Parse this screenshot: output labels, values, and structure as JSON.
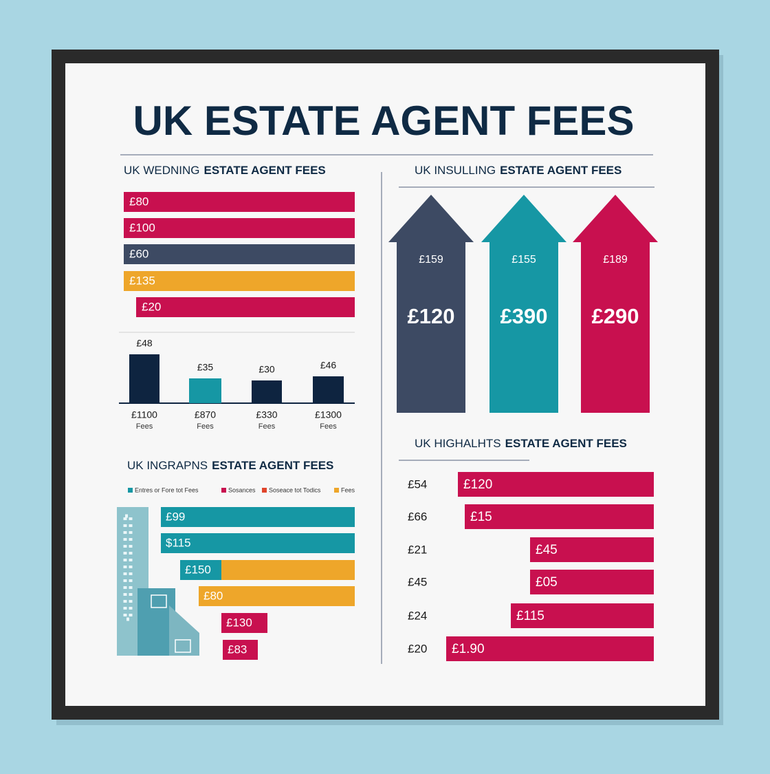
{
  "title": "UK ESTATE AGENT FEES",
  "panels": [
    {
      "subtitle": {
        "prefix": "UK WEDNING",
        "emphasis": "ESTATE AGENT FEES"
      },
      "bars": [
        "£80",
        "£100",
        "£60",
        "£135",
        "£20"
      ],
      "columns": [
        {
          "value": "£48",
          "label": "£1100",
          "sub": "Fees"
        },
        {
          "value": "£35",
          "label": "£870",
          "sub": "Fees"
        },
        {
          "value": "£30",
          "label": "£330",
          "sub": "Fees"
        },
        {
          "value": "£46",
          "label": "£1300",
          "sub": "Fees"
        }
      ]
    },
    {
      "subtitle": {
        "prefix": "UK INSULLING",
        "emphasis": "ESTATE AGENT FEES"
      },
      "houses": [
        {
          "small": "£159",
          "big": "£120"
        },
        {
          "small": "£155",
          "big": "£390"
        },
        {
          "small": "£189",
          "big": "£290"
        }
      ]
    },
    {
      "subtitle": {
        "prefix": "UK INGRAPNS",
        "emphasis": "ESTATE AGENT FEES"
      },
      "legend": [
        "Entres or Fore tot Fees",
        "Sosances",
        "Soseace tot Todics",
        "Fees"
      ],
      "bars": [
        "£99",
        "$115",
        "£150",
        "£80",
        "£130",
        "£83"
      ]
    },
    {
      "subtitle": {
        "prefix": "UK HIGHALHTS",
        "emphasis": "ESTATE AGENT FEES"
      },
      "rows": [
        {
          "label": "£54",
          "bar": "£120"
        },
        {
          "label": "£66",
          "bar": "£15"
        },
        {
          "label": "£21",
          "bar": "£45"
        },
        {
          "label": "£45",
          "bar": "£05"
        },
        {
          "label": "£24",
          "bar": "£115"
        },
        {
          "label": "£20",
          "bar": "£1.90"
        }
      ]
    }
  ]
}
